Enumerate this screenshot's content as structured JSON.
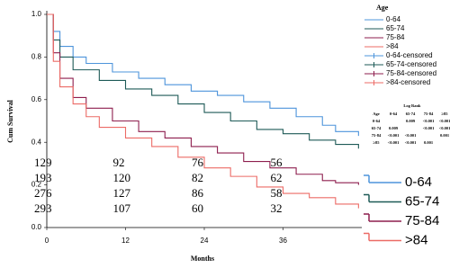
{
  "chart_data": {
    "type": "km",
    "ylabel": "Cum Survival",
    "xlabel": "Months",
    "legend_title": "Age",
    "xlim": [
      0,
      48
    ],
    "xticks": [
      0,
      12,
      24,
      36
    ],
    "ylim": [
      0,
      1
    ],
    "yticks": [
      {
        "value": 0,
        "label": "0.0"
      },
      0.2,
      0.4,
      0.6,
      0.8,
      {
        "value": 1,
        "label": "1.0"
      }
    ],
    "series": [
      {
        "name": "0-64",
        "censored_name": "0-64-censored",
        "color": "#4d94db",
        "x": [
          0,
          1,
          2,
          4,
          6,
          10,
          14,
          18,
          22,
          26,
          30,
          34,
          38,
          42,
          44,
          47.5
        ],
        "values": [
          1,
          0.92,
          0.85,
          0.8,
          0.77,
          0.73,
          0.7,
          0.67,
          0.64,
          0.62,
          0.59,
          0.56,
          0.52,
          0.48,
          0.45,
          0.43
        ]
      },
      {
        "name": "65-74",
        "censored_name": "65-74-censored",
        "color": "#1e5a57",
        "x": [
          0,
          1,
          2,
          4,
          8,
          12,
          16,
          20,
          24,
          28,
          32,
          36,
          40,
          44,
          47.5
        ],
        "values": [
          1,
          0.88,
          0.8,
          0.74,
          0.69,
          0.65,
          0.62,
          0.58,
          0.54,
          0.5,
          0.46,
          0.44,
          0.41,
          0.39,
          0.37
        ]
      },
      {
        "name": "75-84",
        "censored_name": "75-84-censored",
        "color": "#8e1e4e",
        "x": [
          0,
          1,
          2,
          4,
          6,
          10,
          14,
          18,
          22,
          26,
          30,
          34,
          38,
          42,
          44,
          47.5
        ],
        "values": [
          1,
          0.82,
          0.7,
          0.61,
          0.56,
          0.5,
          0.45,
          0.42,
          0.38,
          0.35,
          0.31,
          0.28,
          0.25,
          0.22,
          0.21,
          0.2
        ]
      },
      {
        "name": ">84",
        "censored_name": ">84-censored",
        "color": "#ec6b66",
        "x": [
          0,
          1,
          2,
          4,
          6,
          8,
          12,
          16,
          20,
          24,
          28,
          32,
          36,
          40,
          44,
          47.5
        ],
        "values": [
          1,
          0.78,
          0.66,
          0.58,
          0.52,
          0.47,
          0.42,
          0.38,
          0.33,
          0.28,
          0.24,
          0.19,
          0.16,
          0.14,
          0.11,
          0.09
        ]
      }
    ],
    "risk_table": [
      [
        129,
        92,
        76,
        56
      ],
      [
        193,
        120,
        82,
        62
      ],
      [
        276,
        127,
        86,
        58
      ],
      [
        293,
        107,
        60,
        32
      ]
    ],
    "logrank": {
      "title": "Log Rank",
      "header": [
        "Age",
        "0-64",
        "65-74",
        "75-84",
        "≥85"
      ],
      "rows": [
        [
          "0-64",
          null,
          "0.009",
          "<0.001",
          "<0.001"
        ],
        [
          "65-74",
          "0.009",
          null,
          "<0.001",
          "<0.001"
        ],
        [
          "75-84",
          "<0.001",
          "<0.001",
          null,
          "0.001"
        ],
        [
          "≥85",
          "<0.001",
          "<0.001",
          "0.001",
          null
        ]
      ]
    }
  }
}
